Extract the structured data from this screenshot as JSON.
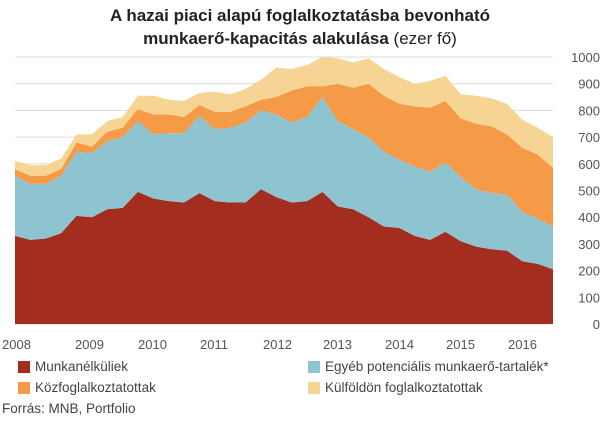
{
  "title_line1": "A hazai piaci alapú foglalkoztatásba bevonható",
  "title_line2_bold": "munkaerő-kapacitás alakulása",
  "title_line2_rest": " (ezer fő)",
  "source": "Forrás: MNB, Portfolio",
  "colors": {
    "munkanelkuliek": "#a32e1f",
    "egyeb": "#8ec4cf",
    "kozfoglalkoztatottak": "#f59a46",
    "kulfoldon": "#f6d594"
  },
  "chart_data": {
    "type": "area",
    "stacked": true,
    "ylim": [
      0,
      1000
    ],
    "yticks": [
      "0",
      "100",
      "200",
      "300",
      "400",
      "500",
      "600",
      "700",
      "800",
      "900",
      "1000"
    ],
    "xticks": [
      "2008",
      "2009",
      "2010",
      "2011",
      "2012",
      "2013",
      "2014",
      "2015",
      "2016"
    ],
    "x": [
      "2008Q1",
      "2008Q2",
      "2008Q3",
      "2008Q4",
      "2009Q1",
      "2009Q2",
      "2009Q3",
      "2009Q4",
      "2010Q1",
      "2010Q2",
      "2010Q3",
      "2010Q4",
      "2011Q1",
      "2011Q2",
      "2011Q3",
      "2011Q4",
      "2012Q1",
      "2012Q2",
      "2012Q3",
      "2012Q4",
      "2013Q1",
      "2013Q2",
      "2013Q3",
      "2013Q4",
      "2014Q1",
      "2014Q2",
      "2014Q3",
      "2014Q4",
      "2015Q1",
      "2015Q2",
      "2015Q3",
      "2015Q4",
      "2016Q1",
      "2016Q2",
      "2016Q3",
      "2016Q4"
    ],
    "series": [
      {
        "name": "Munkanélküliek",
        "key": "munkanelkuliek",
        "values": [
          330,
          315,
          320,
          340,
          405,
          400,
          430,
          435,
          495,
          470,
          460,
          455,
          490,
          460,
          455,
          455,
          505,
          475,
          455,
          460,
          495,
          440,
          430,
          400,
          365,
          360,
          330,
          315,
          345,
          310,
          290,
          280,
          275,
          235,
          225,
          205
        ]
      },
      {
        "name": "Egyéb potenciális munkaerő-tartalék*",
        "key": "egyeb",
        "values": [
          225,
          210,
          205,
          215,
          240,
          240,
          255,
          265,
          265,
          240,
          255,
          260,
          290,
          270,
          280,
          300,
          295,
          310,
          300,
          315,
          355,
          320,
          300,
          300,
          280,
          255,
          260,
          255,
          260,
          240,
          215,
          210,
          210,
          185,
          170,
          160
        ]
      },
      {
        "name": "Közfoglalkoztatottak",
        "key": "kozfoglalkoztatottak",
        "values": [
          25,
          30,
          30,
          25,
          35,
          25,
          35,
          35,
          45,
          75,
          70,
          60,
          40,
          65,
          60,
          60,
          40,
          65,
          120,
          115,
          40,
          140,
          155,
          200,
          210,
          210,
          225,
          240,
          230,
          220,
          245,
          250,
          225,
          240,
          240,
          220
        ]
      },
      {
        "name": "Külföldön foglalkoztatottak",
        "key": "kulfoldon",
        "values": [
          30,
          40,
          40,
          40,
          30,
          45,
          40,
          40,
          50,
          70,
          55,
          60,
          45,
          75,
          65,
          65,
          75,
          110,
          80,
          80,
          110,
          95,
          95,
          95,
          100,
          100,
          85,
          100,
          95,
          90,
          105,
          105,
          115,
          105,
          100,
          115
        ]
      }
    ]
  },
  "legend": [
    {
      "label": "Munkanélküliek",
      "key": "munkanelkuliek"
    },
    {
      "label": "Egyéb potenciális munkaerő-tartalék*",
      "key": "egyeb"
    },
    {
      "label": "Közfoglalkoztatottak",
      "key": "kozfoglalkoztatottak"
    },
    {
      "label": "Külföldön foglalkoztatottak",
      "key": "kulfoldon"
    }
  ]
}
